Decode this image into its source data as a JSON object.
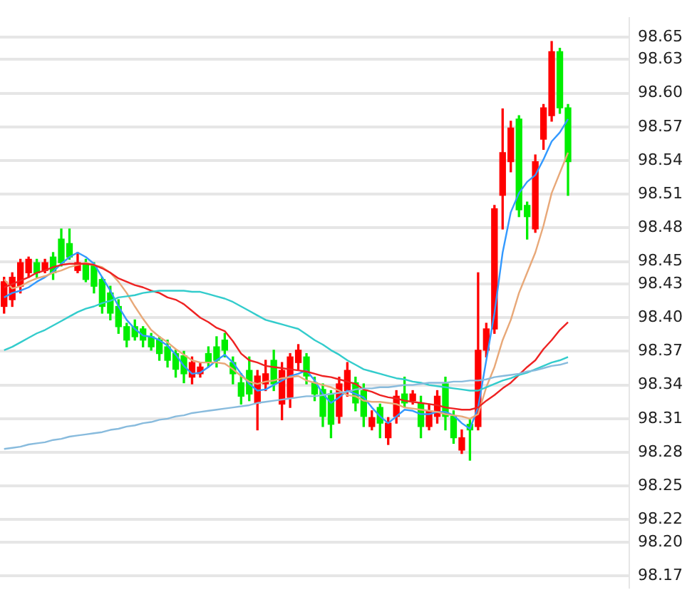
{
  "chart_data": {
    "type": "candlestick",
    "categories": [
      null,
      null,
      null,
      null,
      null,
      null,
      null,
      null,
      null,
      null,
      null,
      null,
      null,
      null,
      null,
      null,
      null,
      null,
      null,
      null,
      null,
      null,
      null,
      null,
      null,
      null,
      null,
      null,
      null,
      null,
      null,
      null,
      null,
      null,
      null,
      null,
      null,
      null,
      null,
      null,
      null,
      null,
      null,
      null,
      null,
      null,
      null,
      null,
      null,
      null,
      null,
      null,
      null,
      null,
      null,
      null,
      null,
      null,
      null,
      null,
      null,
      null,
      null,
      null,
      null,
      null,
      null,
      null,
      null,
      null
    ],
    "ohlc": [
      [
        98.41,
        98.436,
        98.404,
        98.432
      ],
      [
        98.416,
        98.44,
        98.41,
        98.436
      ],
      [
        98.428,
        98.452,
        98.422,
        98.449
      ],
      [
        98.44,
        98.454,
        98.436,
        98.452
      ],
      [
        98.449,
        98.452,
        98.436,
        98.44
      ],
      [
        98.442,
        98.452,
        98.44,
        98.449
      ],
      [
        98.454,
        98.458,
        98.434,
        98.44
      ],
      [
        98.47,
        98.479,
        98.446,
        98.449
      ],
      [
        98.466,
        98.479,
        98.452,
        98.454
      ],
      [
        98.442,
        98.458,
        98.44,
        98.449
      ],
      [
        98.448,
        98.452,
        98.432,
        98.434
      ],
      [
        98.446,
        98.449,
        98.422,
        98.428
      ],
      [
        98.434,
        98.436,
        98.404,
        98.41
      ],
      [
        98.422,
        98.428,
        98.398,
        98.404
      ],
      [
        98.41,
        98.416,
        98.386,
        98.392
      ],
      [
        98.392,
        98.395,
        98.374,
        98.38
      ],
      [
        98.392,
        98.398,
        98.38,
        98.383
      ],
      [
        98.39,
        98.392,
        98.374,
        98.38
      ],
      [
        98.383,
        98.386,
        98.371,
        98.374
      ],
      [
        98.38,
        98.383,
        98.362,
        98.368
      ],
      [
        98.374,
        98.38,
        98.356,
        98.362
      ],
      [
        98.368,
        98.371,
        98.347,
        98.354
      ],
      [
        98.366,
        98.37,
        98.342,
        98.35
      ],
      [
        98.347,
        98.365,
        98.341,
        98.36
      ],
      [
        98.35,
        98.36,
        98.347,
        98.356
      ],
      [
        98.368,
        98.374,
        98.356,
        98.361
      ],
      [
        98.374,
        98.383,
        98.356,
        98.362
      ],
      [
        98.38,
        98.386,
        98.365,
        98.371
      ],
      [
        98.36,
        98.365,
        98.341,
        98.35
      ],
      [
        98.342,
        98.35,
        98.323,
        98.33
      ],
      [
        98.353,
        98.365,
        98.326,
        98.332
      ],
      [
        98.324,
        98.353,
        98.3,
        98.348
      ],
      [
        98.341,
        98.362,
        98.335,
        98.35
      ],
      [
        98.362,
        98.371,
        98.335,
        98.341
      ],
      [
        98.323,
        98.36,
        98.309,
        98.353
      ],
      [
        98.329,
        98.368,
        98.32,
        98.365
      ],
      [
        98.36,
        98.376,
        98.354,
        98.371
      ],
      [
        98.365,
        98.368,
        98.341,
        98.348
      ],
      [
        98.342,
        98.347,
        98.326,
        98.332
      ],
      [
        98.336,
        98.341,
        98.303,
        98.312
      ],
      [
        98.332,
        98.335,
        98.293,
        98.305
      ],
      [
        98.312,
        98.347,
        98.306,
        98.341
      ],
      [
        98.335,
        98.36,
        98.33,
        98.353
      ],
      [
        98.342,
        98.347,
        98.317,
        98.324
      ],
      [
        98.335,
        98.341,
        98.303,
        98.312
      ],
      [
        98.303,
        98.317,
        98.3,
        98.311
      ],
      [
        98.32,
        98.323,
        98.293,
        98.306
      ],
      [
        98.293,
        98.311,
        98.287,
        98.306
      ],
      [
        98.312,
        98.335,
        98.306,
        98.33
      ],
      [
        98.332,
        98.347,
        98.32,
        98.324
      ],
      [
        98.326,
        98.335,
        98.323,
        98.332
      ],
      [
        98.324,
        98.33,
        98.293,
        98.303
      ],
      [
        98.303,
        98.323,
        98.3,
        98.317
      ],
      [
        98.312,
        98.335,
        98.306,
        98.33
      ],
      [
        98.341,
        98.347,
        98.3,
        98.312
      ],
      [
        98.312,
        98.317,
        98.288,
        98.293
      ],
      [
        98.282,
        98.3,
        98.279,
        98.293
      ],
      [
        98.305,
        98.309,
        98.273,
        98.3
      ],
      [
        98.303,
        98.44,
        98.3,
        98.371
      ],
      [
        98.371,
        98.395,
        98.365,
        98.39
      ],
      [
        98.39,
        98.5,
        98.386,
        98.497
      ],
      [
        98.509,
        98.586,
        98.479,
        98.547
      ],
      [
        98.539,
        98.575,
        98.53,
        98.569
      ],
      [
        98.577,
        98.58,
        98.49,
        98.496
      ],
      [
        98.5,
        98.503,
        98.47,
        98.49
      ],
      [
        98.479,
        98.545,
        98.476,
        98.539
      ],
      [
        98.559,
        98.59,
        98.55,
        98.587
      ],
      [
        98.58,
        98.646,
        98.575,
        98.637
      ],
      [
        98.637,
        98.64,
        98.582,
        98.587
      ],
      [
        98.587,
        98.59,
        98.509,
        98.539
      ]
    ],
    "colors": [
      "#ff0000",
      "#ff0000",
      "#ff0000",
      "#ff0000",
      "#00ee00",
      "#ff0000",
      "#00ee00",
      "#00ee00",
      "#00ee00",
      "#ff0000",
      "#00ee00",
      "#00ee00",
      "#00ee00",
      "#00ee00",
      "#00ee00",
      "#00ee00",
      "#00ee00",
      "#00ee00",
      "#00ee00",
      "#00ee00",
      "#00ee00",
      "#00ee00",
      "#00ee00",
      "#ff0000",
      "#ff0000",
      "#00ee00",
      "#00ee00",
      "#00ee00",
      "#00ee00",
      "#00ee00",
      "#00ee00",
      "#ff0000",
      "#ff0000",
      "#00ee00",
      "#ff0000",
      "#ff0000",
      "#ff0000",
      "#00ee00",
      "#00ee00",
      "#00ee00",
      "#00ee00",
      "#ff0000",
      "#ff0000",
      "#00ee00",
      "#00ee00",
      "#ff0000",
      "#00ee00",
      "#ff0000",
      "#ff0000",
      "#00ee00",
      "#ff0000",
      "#00ee00",
      "#ff0000",
      "#ff0000",
      "#00ee00",
      "#00ee00",
      "#ff0000",
      "#00ee00",
      "#ff0000",
      "#ff0000",
      "#ff0000",
      "#ff0000",
      "#ff0000",
      "#00ee00",
      "#00ee00",
      "#ff0000",
      "#ff0000",
      "#ff0000",
      "#00ee00",
      "#00ee00"
    ],
    "series": [
      {
        "type": "line",
        "color": "#88bbdd",
        "values": [
          98.283,
          98.284,
          98.285,
          98.287,
          98.288,
          98.289,
          98.291,
          98.292,
          98.294,
          98.295,
          98.296,
          98.297,
          98.298,
          98.3,
          98.301,
          98.303,
          98.304,
          98.306,
          98.307,
          98.309,
          98.31,
          98.312,
          98.313,
          98.315,
          98.316,
          98.317,
          98.318,
          98.319,
          98.32,
          98.321,
          98.322,
          98.324,
          98.325,
          98.326,
          98.327,
          98.328,
          98.329,
          98.33,
          98.33,
          98.331,
          98.332,
          98.333,
          98.334,
          98.336,
          98.337,
          98.337,
          98.338,
          98.338,
          98.339,
          98.34,
          98.34,
          98.341,
          98.342,
          98.342,
          98.342,
          98.343,
          98.343,
          98.344,
          98.344,
          98.345,
          98.347,
          98.348,
          98.349,
          98.35,
          98.352,
          98.353,
          98.355,
          98.357,
          98.358,
          98.36
        ]
      },
      {
        "type": "line",
        "color": "#33cccc",
        "values": [
          98.371,
          98.374,
          98.378,
          98.382,
          98.386,
          98.389,
          98.393,
          98.397,
          98.401,
          98.405,
          98.408,
          98.41,
          98.413,
          98.415,
          98.418,
          98.419,
          98.42,
          98.422,
          98.423,
          98.424,
          98.424,
          98.424,
          98.424,
          98.423,
          98.423,
          98.421,
          98.419,
          98.417,
          98.414,
          98.41,
          98.406,
          98.402,
          98.398,
          98.396,
          98.394,
          98.392,
          98.39,
          98.385,
          98.38,
          98.376,
          98.371,
          98.367,
          98.362,
          98.358,
          98.354,
          98.352,
          98.35,
          98.348,
          98.346,
          98.345,
          98.343,
          98.342,
          98.34,
          98.339,
          98.338,
          98.337,
          98.336,
          98.335,
          98.335,
          98.338,
          98.341,
          98.344,
          98.346,
          98.349,
          98.351,
          98.354,
          98.357,
          98.36,
          98.362,
          98.365
        ]
      },
      {
        "type": "line",
        "color": "#ee2222",
        "values": [
          98.427,
          98.43,
          98.433,
          98.436,
          98.44,
          98.442,
          98.445,
          98.447,
          98.448,
          98.448,
          98.448,
          98.447,
          98.444,
          98.44,
          98.435,
          98.432,
          98.429,
          98.427,
          98.424,
          98.422,
          98.418,
          98.416,
          98.412,
          98.406,
          98.4,
          98.396,
          98.391,
          98.388,
          98.379,
          98.368,
          98.362,
          98.36,
          98.357,
          98.356,
          98.355,
          98.354,
          98.353,
          98.352,
          98.35,
          98.348,
          98.347,
          98.345,
          98.343,
          98.341,
          98.336,
          98.334,
          98.331,
          98.329,
          98.328,
          98.326,
          98.325,
          98.324,
          98.323,
          98.322,
          98.32,
          98.319,
          98.318,
          98.318,
          98.32,
          98.326,
          98.331,
          98.337,
          98.342,
          98.349,
          98.356,
          98.362,
          98.372,
          98.38,
          98.389,
          98.396
        ]
      },
      {
        "type": "line",
        "color": "#e8a878",
        "values": [
          98.434,
          98.426,
          98.428,
          98.432,
          98.435,
          98.437,
          98.44,
          98.442,
          98.445,
          98.447,
          98.449,
          98.447,
          98.445,
          98.44,
          98.432,
          98.422,
          98.41,
          98.399,
          98.389,
          98.383,
          98.378,
          98.372,
          98.367,
          98.362,
          98.36,
          98.36,
          98.36,
          98.359,
          98.354,
          98.348,
          98.343,
          98.341,
          98.343,
          98.344,
          98.346,
          98.347,
          98.348,
          98.344,
          98.342,
          98.34,
          98.338,
          98.335,
          98.331,
          98.33,
          98.326,
          98.325,
          98.325,
          98.324,
          98.323,
          98.32,
          98.319,
          98.318,
          98.317,
          98.316,
          98.314,
          98.313,
          98.312,
          98.31,
          98.314,
          98.338,
          98.356,
          98.38,
          98.398,
          98.422,
          98.44,
          98.458,
          98.482,
          98.511,
          98.529,
          98.547
        ]
      },
      {
        "type": "line",
        "color": "#3399ff",
        "values": [
          98.418,
          98.422,
          98.424,
          98.427,
          98.432,
          98.436,
          98.441,
          98.448,
          98.454,
          98.458,
          98.454,
          98.448,
          98.436,
          98.424,
          98.41,
          98.398,
          98.39,
          98.384,
          98.383,
          98.38,
          98.375,
          98.367,
          98.357,
          98.35,
          98.351,
          98.356,
          98.362,
          98.367,
          98.36,
          98.35,
          98.341,
          98.335,
          98.336,
          98.34,
          98.344,
          98.348,
          98.35,
          98.353,
          98.344,
          98.332,
          98.324,
          98.329,
          98.335,
          98.332,
          98.329,
          98.32,
          98.312,
          98.306,
          98.312,
          98.318,
          98.317,
          98.314,
          98.314,
          98.316,
          98.316,
          98.313,
          98.306,
          98.301,
          98.32,
          98.362,
          98.404,
          98.458,
          98.494,
          98.511,
          98.521,
          98.527,
          98.541,
          98.557,
          98.565,
          98.577
        ]
      }
    ],
    "ylim": [
      98.16,
      98.667
    ],
    "yticks": [
      {
        "value": 98.17,
        "label": "98.17"
      },
      {
        "value": 98.2,
        "label": "98.20"
      },
      {
        "value": 98.22,
        "label": "98.22"
      },
      {
        "value": 98.25,
        "label": "98.25"
      },
      {
        "value": 98.28,
        "label": "98.28"
      },
      {
        "value": 98.31,
        "label": "98.31"
      },
      {
        "value": 98.34,
        "label": "98.34"
      },
      {
        "value": 98.37,
        "label": "98.37"
      },
      {
        "value": 98.4,
        "label": "98.40"
      },
      {
        "value": 98.43,
        "label": "98.43"
      },
      {
        "value": 98.45,
        "label": "98.45"
      },
      {
        "value": 98.48,
        "label": "98.48"
      },
      {
        "value": 98.51,
        "label": "98.51"
      },
      {
        "value": 98.54,
        "label": "98.54"
      },
      {
        "value": 98.57,
        "label": "98.57"
      },
      {
        "value": 98.6,
        "label": "98.60"
      },
      {
        "value": 98.63,
        "label": "98.63"
      },
      {
        "value": 98.65,
        "label": "98.65"
      }
    ],
    "grid": "y",
    "tick_labels": "y",
    "legend": false,
    "marker": "none"
  }
}
